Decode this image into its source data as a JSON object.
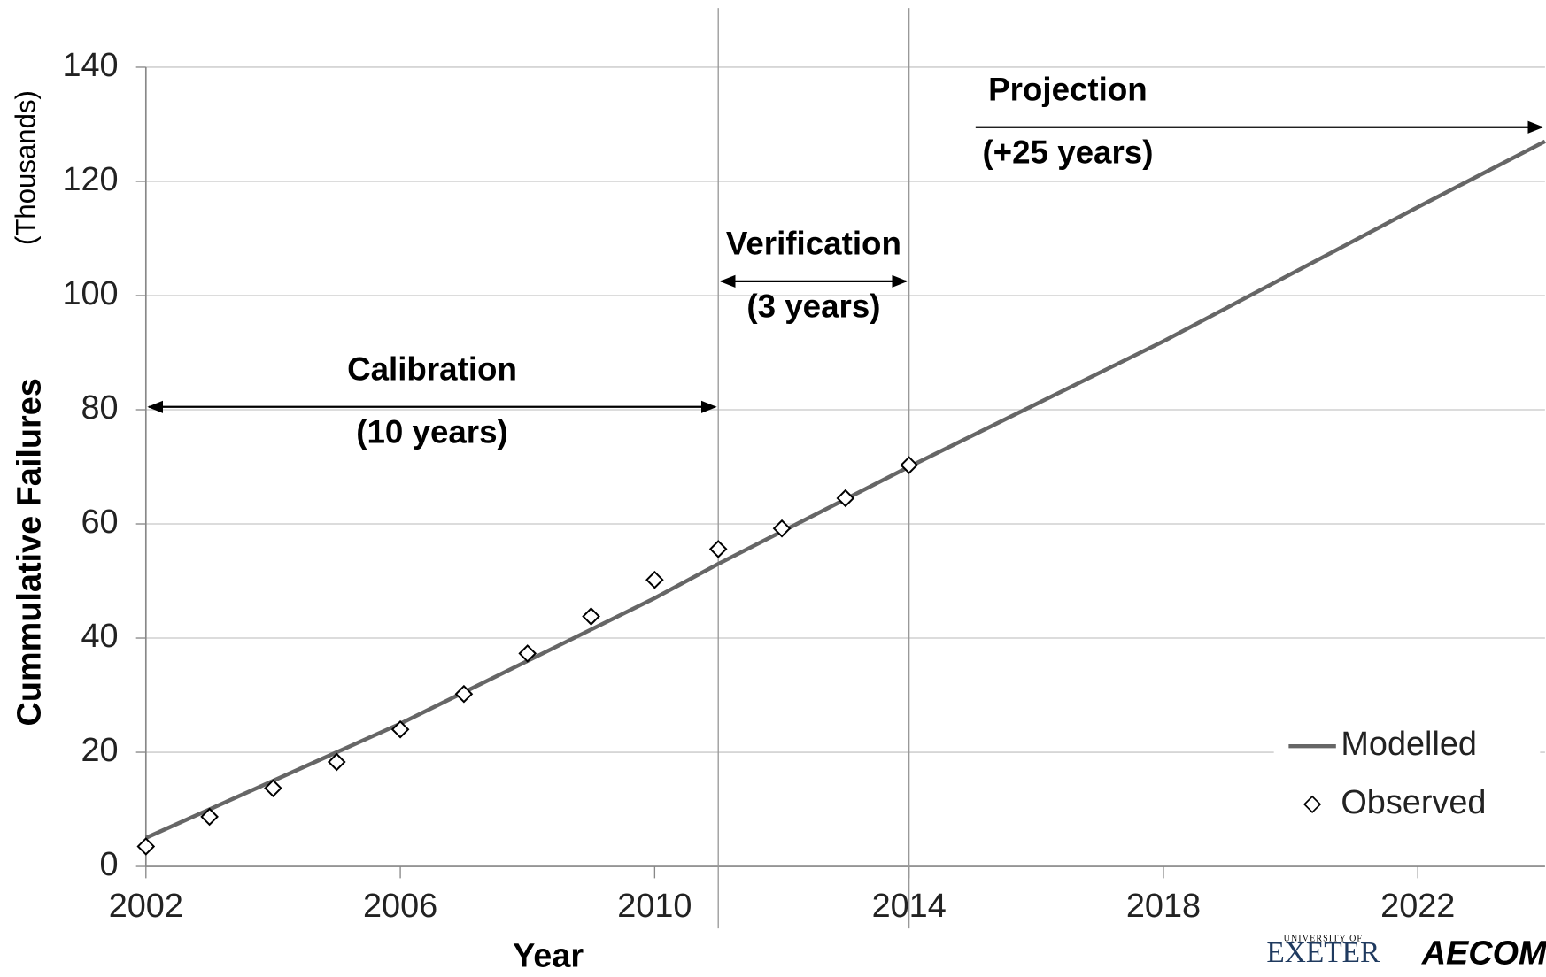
{
  "chart_data": {
    "type": "line",
    "xlabel": "Year",
    "ylabel": "Cummulative Failures",
    "ylabel_units": "(Thousands)",
    "xlim": [
      2002,
      2024
    ],
    "xticks": [
      2002,
      2006,
      2010,
      2014,
      2018,
      2022
    ],
    "ylim": [
      0,
      140
    ],
    "yticks": [
      0,
      20,
      40,
      60,
      80,
      100,
      120,
      140
    ],
    "grid": true,
    "legend": "lower right",
    "series": [
      {
        "name": "Modelled",
        "kind": "line",
        "color": "#666666",
        "x": [
          2002,
          2006,
          2010,
          2011,
          2014,
          2018,
          2022,
          2024
        ],
        "values": [
          5,
          25,
          47,
          53,
          70,
          92,
          115.5,
          127
        ]
      },
      {
        "name": "Observed",
        "kind": "scatter",
        "color": "#000000",
        "x": [
          2002,
          2003,
          2004,
          2005,
          2006,
          2007,
          2008,
          2009,
          2010,
          2011,
          2012,
          2013,
          2014
        ],
        "values": [
          3.5,
          8.7,
          13.7,
          18.3,
          24,
          30.2,
          37.3,
          43.8,
          50.2,
          55.6,
          59.2,
          64.5,
          70.3
        ]
      }
    ],
    "phases": [
      {
        "label": "Calibration",
        "duration": "(10 years)",
        "x": [
          2002,
          2011
        ],
        "y": 80.5
      },
      {
        "label": "Verification",
        "duration": "(3 years)",
        "x": [
          2011,
          2014
        ],
        "y": 102.5
      },
      {
        "label": "Projection",
        "duration": "(+25 years)",
        "x": [
          2015,
          2024
        ],
        "y": 129.5
      }
    ],
    "logos": [
      "UNIVERSITY OF",
      "EXETER",
      "AECOM"
    ]
  }
}
